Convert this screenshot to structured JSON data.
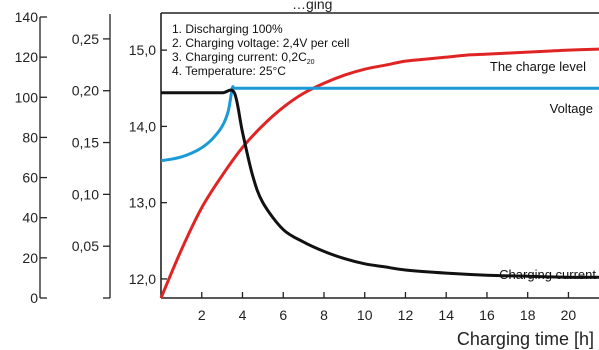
{
  "chart_data": {
    "type": "line",
    "title_partial": "…ging",
    "xlabel": "Charging time [h]",
    "xlim": [
      0,
      21.5
    ],
    "x_ticks": [
      2,
      4,
      6,
      8,
      10,
      12,
      14,
      16,
      18,
      20
    ],
    "notes": [
      "1. Discharging 100%",
      "2. Charging voltage: 2,4V per cell",
      "3. Charging current: 0,2C",
      "4. Temperature: 25°C"
    ],
    "notes_subscript": "20",
    "axes": [
      {
        "id": "charge",
        "range": [
          0,
          140
        ],
        "ticks": [
          0,
          20,
          40,
          60,
          80,
          100,
          120,
          140
        ]
      },
      {
        "id": "current",
        "range": [
          0,
          0.275
        ],
        "ticks": [
          "0,05",
          "0,10",
          "0,15",
          "0,20",
          "0,25"
        ],
        "tick_values": [
          0.05,
          0.1,
          0.15,
          0.2,
          0.25
        ]
      },
      {
        "id": "voltage",
        "range": [
          11.75,
          15.5
        ],
        "ticks": [
          "12,0",
          "13,0",
          "14,0",
          "15,0"
        ],
        "tick_values": [
          12.0,
          13.0,
          14.0,
          15.0
        ]
      }
    ],
    "series": [
      {
        "name": "The charge level",
        "axis": "charge",
        "color": "#e02424",
        "x": [
          0,
          1,
          2,
          3,
          4,
          5,
          6,
          7,
          8,
          9,
          10,
          11,
          12,
          13,
          14,
          15,
          16,
          17,
          18,
          19,
          20,
          21.5
        ],
        "y": [
          0,
          24,
          45,
          61,
          75,
          86,
          95,
          102,
          107,
          111,
          114,
          116,
          118,
          119,
          120,
          121,
          121.5,
          122,
          122.5,
          123,
          123.5,
          124
        ]
      },
      {
        "name": "Voltage",
        "axis": "voltage",
        "color": "#1a9ad6",
        "x": [
          0,
          0.5,
          1,
          1.5,
          2,
          2.5,
          3,
          3.3,
          3.5,
          3.6,
          4,
          6,
          8,
          10,
          12,
          14,
          16,
          18,
          20,
          21.5
        ],
        "y": [
          13.55,
          13.57,
          13.6,
          13.65,
          13.72,
          13.83,
          14.0,
          14.2,
          14.5,
          14.5,
          14.5,
          14.5,
          14.5,
          14.5,
          14.5,
          14.5,
          14.5,
          14.5,
          14.5,
          14.5
        ]
      },
      {
        "name": "Charging current",
        "axis": "current",
        "color": "#111111",
        "x": [
          0,
          1,
          2,
          3,
          3.6,
          4,
          4.5,
          5,
          6,
          7,
          8,
          9,
          10,
          11,
          12,
          14,
          16,
          18,
          20,
          21.5
        ],
        "y": [
          0.198,
          0.198,
          0.198,
          0.198,
          0.198,
          0.16,
          0.118,
          0.092,
          0.066,
          0.054,
          0.045,
          0.038,
          0.033,
          0.03,
          0.027,
          0.024,
          0.022,
          0.021,
          0.02,
          0.02
        ]
      }
    ]
  }
}
